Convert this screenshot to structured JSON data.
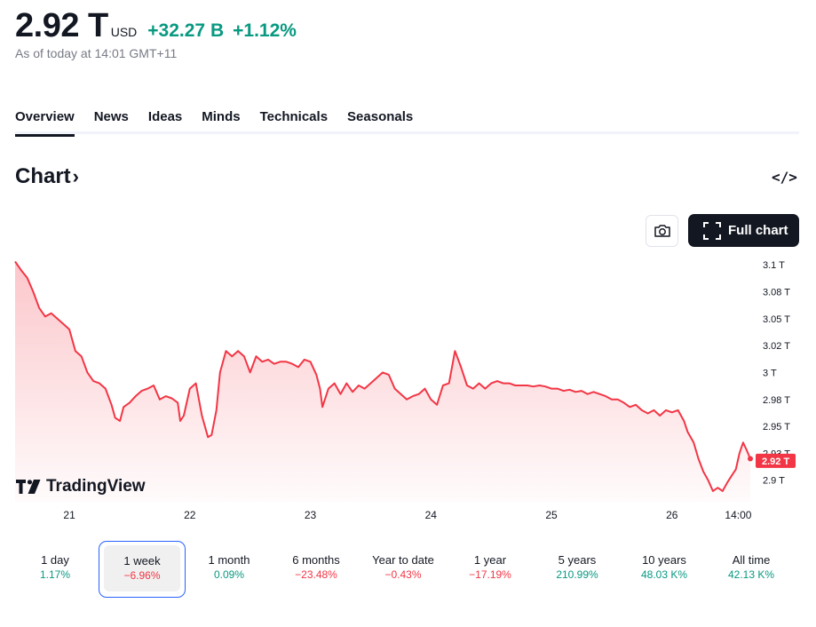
{
  "header": {
    "price": "2.92 T",
    "currency": "USD",
    "change": "+32.27 B",
    "change_pct": "+1.12%",
    "as_of": "As of today at 14:01 GMT+11"
  },
  "tabs": [
    {
      "label": "Overview",
      "active": true
    },
    {
      "label": "News",
      "active": false
    },
    {
      "label": "Ideas",
      "active": false
    },
    {
      "label": "Minds",
      "active": false
    },
    {
      "label": "Technicals",
      "active": false
    },
    {
      "label": "Seasonals",
      "active": false
    }
  ],
  "chart_section": {
    "title": "Chart",
    "embed_label": "</>",
    "full_chart_label": "Full chart",
    "brand": "TradingView"
  },
  "colors": {
    "accent_up": "#089981",
    "accent_down": "#f23645",
    "line": "#f23645",
    "dark": "#131722"
  },
  "icons": [
    "camera-icon",
    "fullscreen-icon",
    "embed-code-icon",
    "chevron-right-icon",
    "tradingview-logo-icon"
  ],
  "chart_data": {
    "type": "area",
    "x_tick_labels": [
      "21",
      "22",
      "23",
      "24",
      "25",
      "26",
      "14:00"
    ],
    "y_tick_labels": [
      "3.1 T",
      "3.08 T",
      "3.05 T",
      "3.02 T",
      "3 T",
      "2.98 T",
      "2.95 T",
      "2.93 T",
      "2.9 T"
    ],
    "y_tick_values": [
      3.1,
      3.075,
      3.05,
      3.025,
      3.0,
      2.975,
      2.95,
      2.925,
      2.9
    ],
    "ylim": [
      2.88,
      3.11
    ],
    "last_value_label": "2.92 T",
    "last_value": 2.918,
    "x_range": [
      20.55,
      26.65
    ],
    "series": [
      {
        "values": [
          [
            20.55,
            3.103
          ],
          [
            20.6,
            3.095
          ],
          [
            20.65,
            3.088
          ],
          [
            20.7,
            3.075
          ],
          [
            20.75,
            3.06
          ],
          [
            20.8,
            3.052
          ],
          [
            20.85,
            3.055
          ],
          [
            20.9,
            3.05
          ],
          [
            20.95,
            3.045
          ],
          [
            21.0,
            3.04
          ],
          [
            21.05,
            3.02
          ],
          [
            21.1,
            3.015
          ],
          [
            21.15,
            3.0
          ],
          [
            21.2,
            2.992
          ],
          [
            21.25,
            2.99
          ],
          [
            21.3,
            2.985
          ],
          [
            21.35,
            2.97
          ],
          [
            21.38,
            2.958
          ],
          [
            21.42,
            2.955
          ],
          [
            21.45,
            2.968
          ],
          [
            21.5,
            2.972
          ],
          [
            21.55,
            2.978
          ],
          [
            21.6,
            2.983
          ],
          [
            21.65,
            2.985
          ],
          [
            21.7,
            2.988
          ],
          [
            21.75,
            2.975
          ],
          [
            21.8,
            2.978
          ],
          [
            21.85,
            2.976
          ],
          [
            21.9,
            2.972
          ],
          [
            21.92,
            2.955
          ],
          [
            21.95,
            2.96
          ],
          [
            22.0,
            2.985
          ],
          [
            22.05,
            2.99
          ],
          [
            22.1,
            2.96
          ],
          [
            22.15,
            2.94
          ],
          [
            22.18,
            2.942
          ],
          [
            22.22,
            2.965
          ],
          [
            22.25,
            3.0
          ],
          [
            22.3,
            3.02
          ],
          [
            22.35,
            3.015
          ],
          [
            22.4,
            3.02
          ],
          [
            22.45,
            3.015
          ],
          [
            22.5,
            3.0
          ],
          [
            22.55,
            3.015
          ],
          [
            22.6,
            3.01
          ],
          [
            22.65,
            3.012
          ],
          [
            22.7,
            3.008
          ],
          [
            22.75,
            3.01
          ],
          [
            22.8,
            3.01
          ],
          [
            22.85,
            3.008
          ],
          [
            22.9,
            3.005
          ],
          [
            22.95,
            3.012
          ],
          [
            23.0,
            3.01
          ],
          [
            23.05,
            2.998
          ],
          [
            23.08,
            2.985
          ],
          [
            23.1,
            2.968
          ],
          [
            23.15,
            2.985
          ],
          [
            23.2,
            2.99
          ],
          [
            23.25,
            2.98
          ],
          [
            23.3,
            2.99
          ],
          [
            23.35,
            2.982
          ],
          [
            23.4,
            2.988
          ],
          [
            23.45,
            2.985
          ],
          [
            23.5,
            2.99
          ],
          [
            23.55,
            2.995
          ],
          [
            23.6,
            3.0
          ],
          [
            23.65,
            2.998
          ],
          [
            23.7,
            2.985
          ],
          [
            23.75,
            2.98
          ],
          [
            23.8,
            2.975
          ],
          [
            23.85,
            2.978
          ],
          [
            23.9,
            2.98
          ],
          [
            23.95,
            2.985
          ],
          [
            24.0,
            2.975
          ],
          [
            24.05,
            2.97
          ],
          [
            24.1,
            2.988
          ],
          [
            24.15,
            2.99
          ],
          [
            24.2,
            3.02
          ],
          [
            24.25,
            3.005
          ],
          [
            24.3,
            2.988
          ],
          [
            24.35,
            2.985
          ],
          [
            24.4,
            2.99
          ],
          [
            24.45,
            2.985
          ],
          [
            24.5,
            2.99
          ],
          [
            24.55,
            2.992
          ],
          [
            24.6,
            2.99
          ],
          [
            24.65,
            2.99
          ],
          [
            24.7,
            2.988
          ],
          [
            24.75,
            2.988
          ],
          [
            24.8,
            2.988
          ],
          [
            24.85,
            2.987
          ],
          [
            24.9,
            2.988
          ],
          [
            24.95,
            2.987
          ],
          [
            25.0,
            2.985
          ],
          [
            25.05,
            2.985
          ],
          [
            25.1,
            2.983
          ],
          [
            25.15,
            2.984
          ],
          [
            25.2,
            2.982
          ],
          [
            25.25,
            2.983
          ],
          [
            25.3,
            2.98
          ],
          [
            25.35,
            2.982
          ],
          [
            25.4,
            2.98
          ],
          [
            25.45,
            2.978
          ],
          [
            25.5,
            2.975
          ],
          [
            25.55,
            2.975
          ],
          [
            25.6,
            2.972
          ],
          [
            25.65,
            2.968
          ],
          [
            25.7,
            2.97
          ],
          [
            25.75,
            2.965
          ],
          [
            25.8,
            2.962
          ],
          [
            25.85,
            2.965
          ],
          [
            25.9,
            2.96
          ],
          [
            25.95,
            2.965
          ],
          [
            26.0,
            2.963
          ],
          [
            26.05,
            2.965
          ],
          [
            26.1,
            2.955
          ],
          [
            26.13,
            2.945
          ],
          [
            26.18,
            2.935
          ],
          [
            26.22,
            2.92
          ],
          [
            26.26,
            2.908
          ],
          [
            26.3,
            2.9
          ],
          [
            26.34,
            2.89
          ],
          [
            26.38,
            2.893
          ],
          [
            26.42,
            2.89
          ],
          [
            26.46,
            2.898
          ],
          [
            26.5,
            2.905
          ],
          [
            26.53,
            2.91
          ],
          [
            26.56,
            2.925
          ],
          [
            26.59,
            2.935
          ],
          [
            26.62,
            2.928
          ],
          [
            26.65,
            2.92
          ]
        ]
      }
    ]
  },
  "ranges": [
    {
      "label": "1 day",
      "value": "1.17%",
      "dir": "pos",
      "selected": false
    },
    {
      "label": "1 week",
      "value": "−6.96%",
      "dir": "neg",
      "selected": true
    },
    {
      "label": "1 month",
      "value": "0.09%",
      "dir": "pos",
      "selected": false
    },
    {
      "label": "6 months",
      "value": "−23.48%",
      "dir": "neg",
      "selected": false
    },
    {
      "label": "Year to date",
      "value": "−0.43%",
      "dir": "neg",
      "selected": false
    },
    {
      "label": "1 year",
      "value": "−17.19%",
      "dir": "neg",
      "selected": false
    },
    {
      "label": "5 years",
      "value": "210.99%",
      "dir": "pos",
      "selected": false
    },
    {
      "label": "10 years",
      "value": "48.03 K%",
      "dir": "pos",
      "selected": false
    },
    {
      "label": "All time",
      "value": "42.13 K%",
      "dir": "pos",
      "selected": false
    }
  ]
}
